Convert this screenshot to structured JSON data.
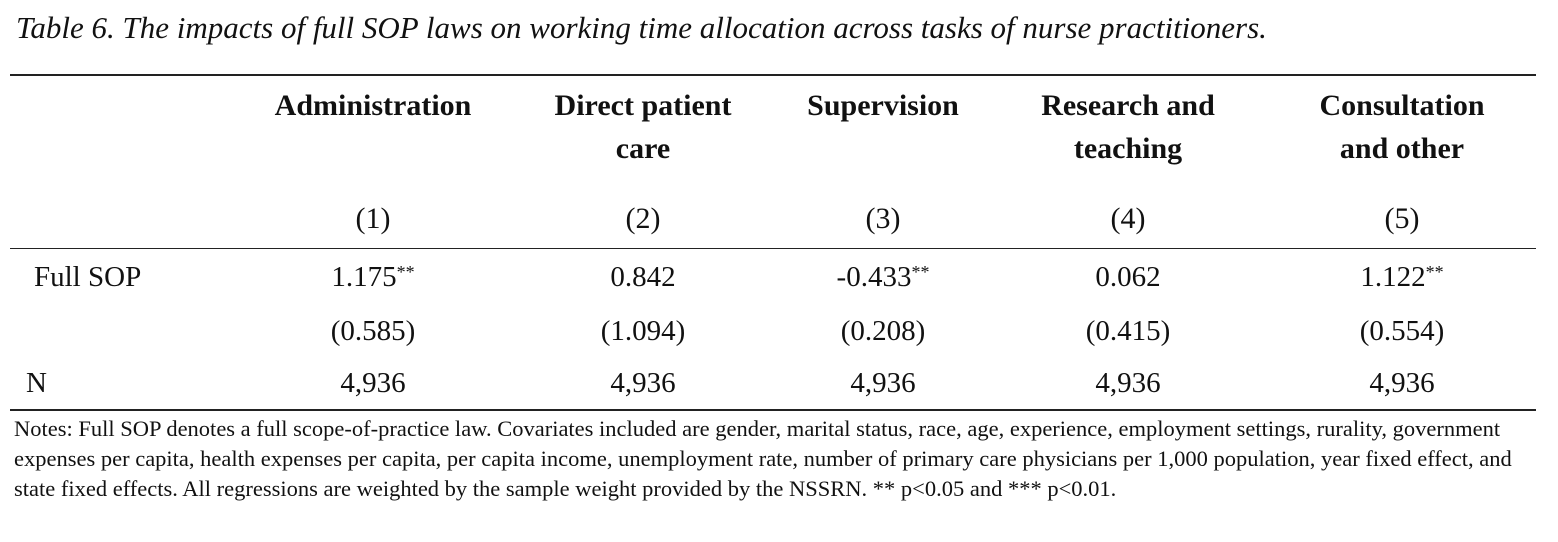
{
  "title": "Table 6. The impacts of full SOP laws on working time allocation across tasks of nurse practitioners.",
  "columns": [
    {
      "heading_line1": "Administration",
      "heading_line2": "",
      "number": "(1)"
    },
    {
      "heading_line1": "Direct patient",
      "heading_line2": "care",
      "number": "(2)"
    },
    {
      "heading_line1": "Supervision",
      "heading_line2": "",
      "number": "(3)"
    },
    {
      "heading_line1": "Research and",
      "heading_line2": "teaching",
      "number": "(4)"
    },
    {
      "heading_line1": "Consultation",
      "heading_line2": "and other",
      "number": "(5)"
    }
  ],
  "rows": {
    "full_sop": {
      "label": "Full SOP",
      "coefs": [
        {
          "value": "1.175",
          "stars": "**"
        },
        {
          "value": "0.842",
          "stars": ""
        },
        {
          "value": "-0.433",
          "stars": "**"
        },
        {
          "value": "0.062",
          "stars": ""
        },
        {
          "value": "1.122",
          "stars": "**"
        }
      ],
      "ses": [
        "(0.585)",
        "(1.094)",
        "(0.208)",
        "(0.415)",
        "(0.554)"
      ]
    },
    "n": {
      "label": "N",
      "values": [
        "4,936",
        "4,936",
        "4,936",
        "4,936",
        "4,936"
      ]
    }
  },
  "notes": "Notes: Full SOP denotes a full scope-of-practice law. Covariates included are gender, marital status, race, age, experience, employment settings, rurality, government expenses per capita, health expenses per capita, per capita income, unemployment rate, number of primary care physicians per 1,000 population, year fixed effect, and state fixed effects. All regressions are weighted by the sample weight provided by the NSSRN. ** p<0.05 and *** p<0.01."
}
